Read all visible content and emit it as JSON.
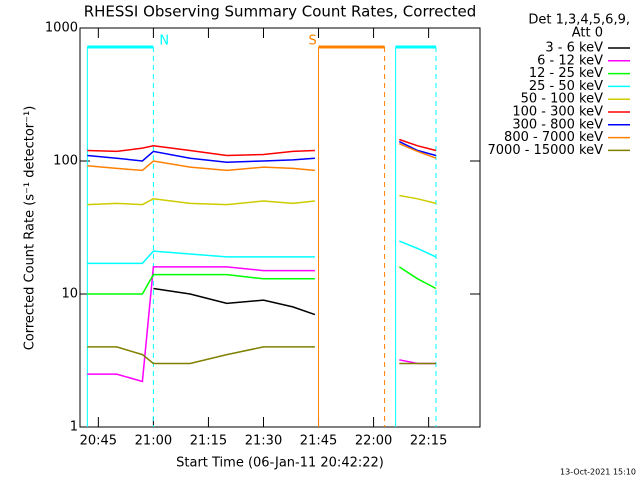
{
  "chart_data": {
    "type": "line",
    "title": "RHESSI Observing Summary Count Rates, Corrected",
    "x_label": "Start Time (06-Jan-11 20:42:22)",
    "y_label": "Corrected Count Rate (s⁻¹ detector⁻¹)",
    "legend_title": [
      "Det 1,3,4,5,6,9,",
      "Att 0"
    ],
    "footer": "13-Oct-2021 15:10",
    "log_y": true,
    "xlim": [
      "20:40",
      "22:29"
    ],
    "xticks": [
      "20:45",
      "21:00",
      "21:15",
      "21:30",
      "21:45",
      "22:00",
      "22:15"
    ],
    "ylim": [
      1,
      1000
    ],
    "yticks": [
      1,
      10,
      100,
      1000
    ],
    "x": [
      "20:42",
      "20:50",
      "20:57",
      "21:00",
      "21:10",
      "21:20",
      "21:30",
      "21:38",
      "21:44",
      "21:46",
      "22:07",
      "22:12",
      "22:17"
    ],
    "series": [
      {
        "name": "3 - 6 keV",
        "color": "#000000",
        "values": [
          null,
          null,
          null,
          11,
          10,
          8.5,
          9,
          8,
          7,
          null,
          null,
          null,
          null
        ]
      },
      {
        "name": "6 - 12 keV",
        "color": "#ff00ff",
        "values": [
          2.5,
          2.5,
          2.2,
          16,
          16,
          16,
          15,
          15,
          15,
          null,
          3.2,
          3,
          3
        ]
      },
      {
        "name": "12 - 25 keV",
        "color": "#00ff00",
        "values": [
          10,
          10,
          10,
          14,
          14,
          14,
          13,
          13,
          13,
          null,
          16,
          13,
          11
        ]
      },
      {
        "name": "25 - 50 keV",
        "color": "#00ffff",
        "values": [
          17,
          17,
          17,
          21,
          20,
          19,
          19,
          19,
          19,
          null,
          25,
          22,
          19
        ]
      },
      {
        "name": "50 - 100 keV",
        "color": "#cccc00",
        "values": [
          47,
          48,
          47,
          52,
          48,
          47,
          50,
          48,
          50,
          null,
          55,
          52,
          48
        ]
      },
      {
        "name": "100 - 300 keV",
        "color": "#ff0000",
        "values": [
          120,
          118,
          125,
          130,
          120,
          110,
          112,
          118,
          120,
          null,
          145,
          130,
          120
        ]
      },
      {
        "name": "300 - 800 keV",
        "color": "#0000ff",
        "values": [
          110,
          105,
          100,
          118,
          105,
          98,
          100,
          102,
          105,
          null,
          140,
          120,
          110
        ]
      },
      {
        "name": "800 - 7000 keV",
        "color": "#ff8000",
        "values": [
          92,
          88,
          85,
          100,
          90,
          85,
          90,
          88,
          85,
          null,
          135,
          118,
          105
        ]
      },
      {
        "name": "7000 - 15000 keV",
        "color": "#808000",
        "values": [
          4,
          4,
          3.5,
          3,
          3,
          3.5,
          4,
          4,
          4,
          null,
          3,
          3,
          3
        ]
      }
    ],
    "flags": [
      {
        "label": "N",
        "start": "20:42",
        "end": "21:00",
        "color": "#00ffff"
      },
      {
        "label": "S",
        "start": "21:45",
        "end": "22:03",
        "color": "#ff8000"
      },
      {
        "start": "22:06",
        "end": "22:17",
        "color": "#00ffff"
      }
    ]
  }
}
